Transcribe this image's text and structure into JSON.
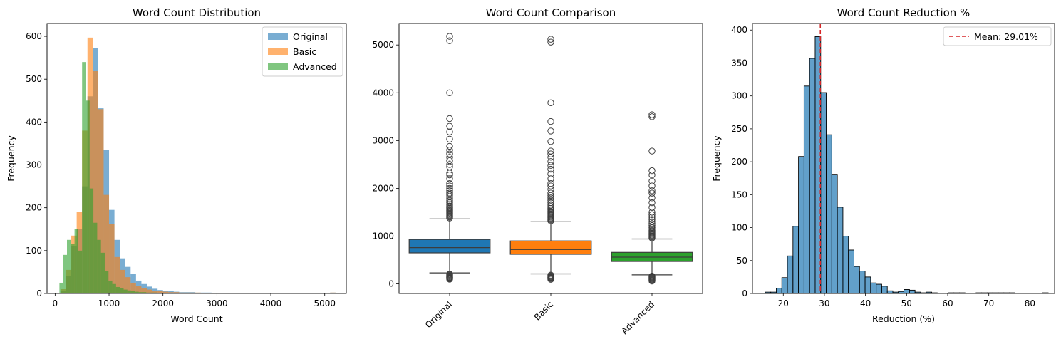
{
  "chart_data": [
    {
      "type": "histogram",
      "title": "Word Count Distribution",
      "xlabel": "Word Count",
      "ylabel": "Frequency",
      "xlim": [
        -150,
        5400
      ],
      "ylim": [
        0,
        630
      ],
      "xticks": [
        0,
        1000,
        2000,
        3000,
        4000,
        5000
      ],
      "yticks": [
        0,
        100,
        200,
        300,
        400,
        500,
        600
      ],
      "legend_position": "top-right",
      "grid": false,
      "series": [
        {
          "name": "Original",
          "color": "#1f77b4",
          "bin_width": 100,
          "bin_starts": [
            100,
            200,
            300,
            400,
            500,
            600,
            700,
            800,
            900,
            1000,
            1100,
            1200,
            1300,
            1400,
            1500,
            1600,
            1700,
            1800,
            1900,
            2000,
            2100,
            2200,
            2300,
            2400,
            2500,
            2600,
            2700,
            2800,
            2900,
            3000,
            3100,
            3200,
            3300,
            3400,
            3500,
            3900,
            5100
          ],
          "values": [
            5,
            40,
            110,
            150,
            250,
            460,
            572,
            432,
            335,
            195,
            125,
            82,
            62,
            45,
            30,
            22,
            16,
            11,
            8,
            6,
            5,
            4,
            3,
            3,
            3,
            2,
            2,
            2,
            1,
            1,
            1,
            1,
            1,
            1,
            1,
            1,
            2
          ]
        },
        {
          "name": "Basic",
          "color": "#ff7f0e",
          "bin_width": 100,
          "bin_starts": [
            100,
            200,
            300,
            400,
            500,
            600,
            700,
            800,
            900,
            1000,
            1100,
            1200,
            1300,
            1400,
            1500,
            1600,
            1700,
            1800,
            1900,
            2000,
            2100,
            2200,
            2300,
            2400,
            2500,
            2600,
            2700,
            2800,
            2900,
            3000,
            3100,
            3200,
            3300,
            3400,
            3700,
            5100
          ],
          "values": [
            10,
            55,
            135,
            190,
            380,
            597,
            520,
            430,
            230,
            162,
            85,
            55,
            38,
            25,
            18,
            12,
            9,
            6,
            5,
            4,
            3,
            3,
            2,
            2,
            2,
            2,
            1,
            1,
            1,
            1,
            1,
            1,
            1,
            1,
            1,
            2
          ]
        },
        {
          "name": "Advanced",
          "color": "#2ca02c",
          "bin_width": 70,
          "bin_starts": [
            80,
            150,
            220,
            290,
            360,
            430,
            500,
            570,
            640,
            710,
            780,
            850,
            920,
            990,
            1060,
            1130,
            1200,
            1270,
            1340,
            1410,
            1480,
            1550,
            1620,
            1690,
            1760,
            1830,
            1900,
            2000,
            2200,
            2700,
            3500
          ],
          "values": [
            25,
            90,
            125,
            115,
            150,
            100,
            540,
            450,
            245,
            165,
            125,
            95,
            52,
            30,
            22,
            15,
            12,
            9,
            7,
            5,
            4,
            3,
            3,
            2,
            2,
            2,
            1,
            1,
            1,
            1,
            1
          ]
        }
      ]
    },
    {
      "type": "box",
      "title": "Word Count Comparison",
      "xlabel": "",
      "ylabel": "",
      "categories": [
        "Original",
        "Basic",
        "Advanced"
      ],
      "ylim": [
        -200,
        5450
      ],
      "yticks": [
        0,
        1000,
        2000,
        3000,
        4000,
        5000
      ],
      "grid": false,
      "boxes": [
        {
          "name": "Original",
          "color": "#1f77b4",
          "whisker_low": 230,
          "q1": 650,
          "median": 760,
          "q3": 930,
          "whisker_high": 1360,
          "outliers_low": [
            100,
            115,
            125,
            135,
            145,
            160,
            175,
            190,
            205
          ],
          "outliers_high": [
            1380,
            1400,
            1420,
            1440,
            1460,
            1480,
            1500,
            1520,
            1540,
            1560,
            1580,
            1600,
            1630,
            1660,
            1700,
            1740,
            1780,
            1820,
            1860,
            1900,
            1950,
            2000,
            2050,
            2100,
            2200,
            2280,
            2320,
            2450,
            2500,
            2580,
            2650,
            2720,
            2800,
            2880,
            3030,
            3180,
            3300,
            3460,
            4000,
            5090,
            5180
          ]
        },
        {
          "name": "Basic",
          "color": "#ff7f0e",
          "whisker_low": 210,
          "q1": 620,
          "median": 720,
          "q3": 900,
          "whisker_high": 1300,
          "outliers_low": [
            95,
            110,
            120,
            130,
            140,
            155,
            170,
            185
          ],
          "outliers_high": [
            1320,
            1340,
            1360,
            1380,
            1400,
            1420,
            1440,
            1460,
            1480,
            1500,
            1520,
            1550,
            1580,
            1610,
            1650,
            1700,
            1750,
            1800,
            1850,
            1900,
            1980,
            2050,
            2100,
            2200,
            2300,
            2400,
            2480,
            2560,
            2650,
            2720,
            2780,
            2980,
            3200,
            3400,
            3790,
            5060,
            5120
          ]
        },
        {
          "name": "Advanced",
          "color": "#2ca02c",
          "whisker_low": 190,
          "q1": 470,
          "median": 560,
          "q3": 660,
          "whisker_high": 940,
          "outliers_low": [
            60,
            75,
            90,
            105,
            120,
            135,
            150,
            165
          ],
          "outliers_high": [
            960,
            980,
            1000,
            1020,
            1040,
            1060,
            1080,
            1100,
            1120,
            1150,
            1180,
            1220,
            1260,
            1300,
            1350,
            1400,
            1450,
            1500,
            1600,
            1700,
            1800,
            1900,
            1950,
            2050,
            2150,
            2280,
            2370,
            2780,
            3500,
            3540
          ]
        }
      ]
    },
    {
      "type": "histogram",
      "title": "Word Count Reduction %",
      "xlabel": "Reduction (%)",
      "ylabel": "Frequency",
      "xlim": [
        12.5,
        86
      ],
      "ylim": [
        0,
        410
      ],
      "xticks": [
        20,
        30,
        40,
        50,
        60,
        70,
        80
      ],
      "yticks": [
        0,
        50,
        100,
        150,
        200,
        250,
        300,
        350,
        400
      ],
      "legend_position": "top-right",
      "grid": false,
      "series": [
        {
          "name": "",
          "color": "#1f77b4",
          "bin_start": 15.6,
          "bin_width": 1.35,
          "values": [
            2,
            2,
            8,
            24,
            57,
            102,
            208,
            315,
            357,
            390,
            305,
            241,
            181,
            131,
            87,
            66,
            41,
            34,
            25,
            16,
            14,
            11,
            4,
            2,
            3,
            6,
            5,
            2,
            1,
            2,
            1,
            0,
            0,
            1,
            1,
            1,
            0,
            0,
            1,
            1,
            1,
            1,
            1,
            1,
            1,
            0,
            0,
            0,
            0,
            0,
            1
          ]
        }
      ],
      "mean_line": {
        "value": 29.01,
        "label": "Mean: 29.01%",
        "color": "#d62728"
      }
    }
  ]
}
